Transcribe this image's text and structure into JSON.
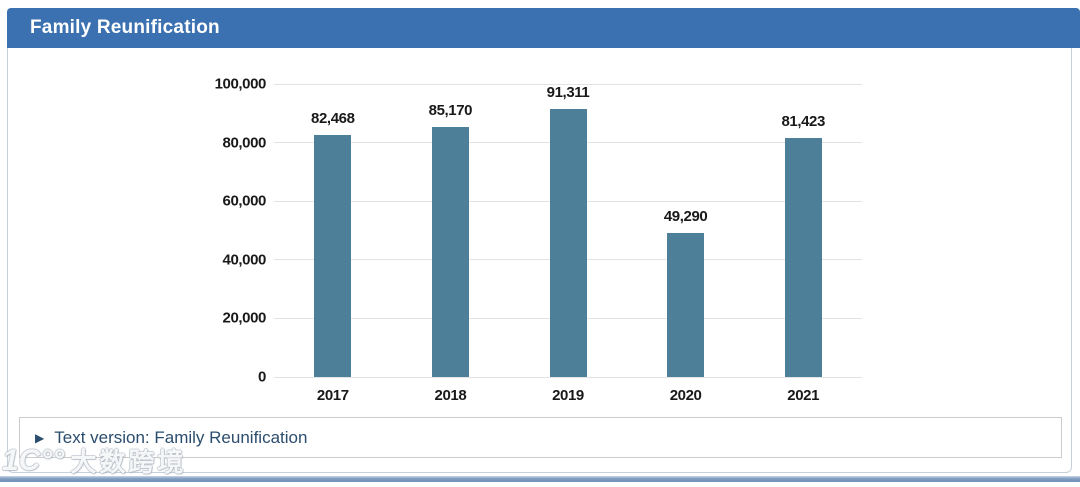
{
  "header": {
    "title": "Family Reunification",
    "bg_color": "#3b71b0"
  },
  "chart_data": {
    "type": "bar",
    "title": "Family Reunification",
    "categories": [
      "2017",
      "2018",
      "2019",
      "2020",
      "2021"
    ],
    "values": [
      82468,
      85170,
      91311,
      49290,
      81423
    ],
    "value_labels": [
      "82,468",
      "85,170",
      "91,311",
      "49,290",
      "81,423"
    ],
    "xlabel": "",
    "ylabel": "",
    "ylim": [
      0,
      100000
    ],
    "yticks": [
      0,
      20000,
      40000,
      60000,
      80000,
      100000
    ],
    "ytick_labels": [
      "0",
      "20,000",
      "40,000",
      "60,000",
      "80,000",
      "100,000"
    ],
    "grid": "horizontal",
    "legend": "none",
    "bar_color": "#4d7f98",
    "gridline_color": "#e3e3e3",
    "label_color": "#191919"
  },
  "text_version": {
    "marker": "▶",
    "label": "Text version: Family Reunification"
  },
  "watermark": {
    "logo": "1C°°",
    "text": "大数跨境"
  }
}
